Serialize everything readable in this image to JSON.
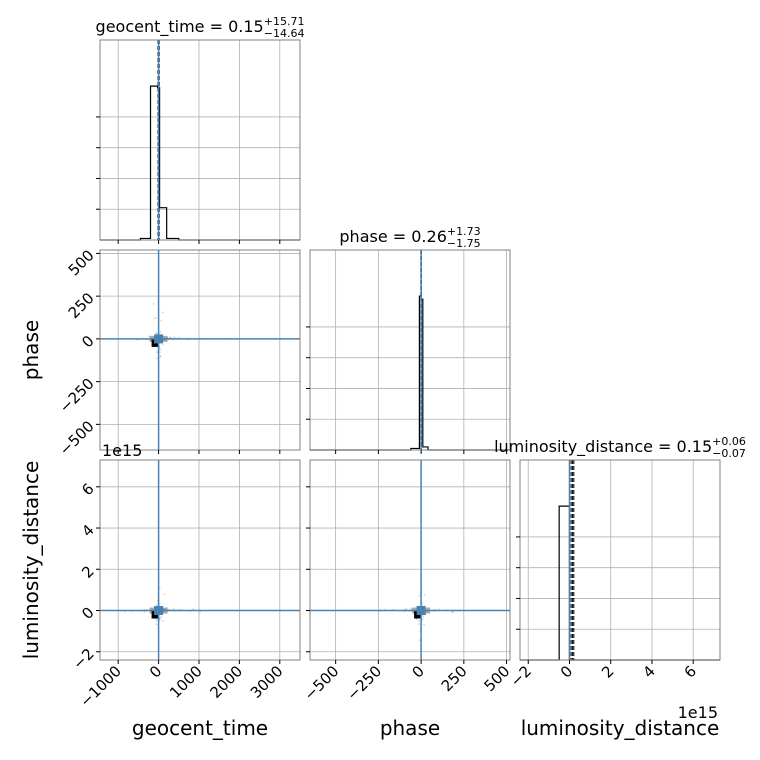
{
  "chart_data": {
    "type": "corner",
    "parameters": [
      "geocent_time",
      "phase",
      "luminosity_distance"
    ],
    "axis_labels": {
      "geocent_time": "geocent_time",
      "phase": "phase",
      "luminosity_distance": "luminosity_distance"
    },
    "ranges": {
      "geocent_time": [
        -1450,
        3500
      ],
      "phase": [
        -650,
        520
      ],
      "luminosity_distance": [
        -2.4,
        7.3
      ]
    },
    "ticks": {
      "geocent_time": [
        -1000,
        0,
        1000,
        2000,
        3000
      ],
      "phase": [
        -500,
        -250,
        0,
        250,
        500
      ],
      "luminosity_distance": [
        -2,
        0,
        2,
        4,
        6
      ]
    },
    "tick_labels": {
      "geocent_time": [
        "−1000",
        "0",
        "1000",
        "2000",
        "3000"
      ],
      "phase": [
        "−500",
        "−250",
        "0",
        "250",
        "500"
      ],
      "luminosity_distance": [
        "−2",
        "0",
        "2",
        "4",
        "6"
      ]
    },
    "offset_text": "1e15",
    "truths": {
      "geocent_time": 0,
      "phase": 0,
      "luminosity_distance": 0
    },
    "truth_color": "#4682b4",
    "quantile_lines": {
      "geocent_time": [
        -14.49,
        0.15,
        15.86
      ],
      "phase": [
        -1.49,
        0.26,
        1.99
      ],
      "luminosity_distance": [
        0.08,
        0.15,
        0.21
      ]
    },
    "titles": {
      "geocent_time": {
        "name": "geocent_time",
        "value": "0.15",
        "plus": "+15.71",
        "minus": "−14.64"
      },
      "phase": {
        "name": "phase",
        "value": "0.26",
        "plus": "+1.73",
        "minus": "−1.75"
      },
      "luminosity_distance": {
        "name": "luminosity_distance",
        "value": "0.15",
        "plus": "+0.06",
        "minus": "−0.07"
      }
    },
    "histograms": {
      "geocent_time": {
        "edges": [
          -450,
          -200,
          -25,
          25,
          200,
          500
        ],
        "counts": [
          0.01,
          1.0,
          0.99,
          0.21,
          0.01
        ]
      },
      "phase": {
        "edges": [
          -60,
          -10,
          0,
          10,
          40
        ],
        "counts": [
          0.01,
          1.0,
          0.98,
          0.02
        ]
      },
      "luminosity_distance": {
        "edges": [
          -0.5,
          -0.05,
          0.0
        ],
        "counts": [
          1.0,
          1.0
        ]
      }
    },
    "hist_ymax": 1.3,
    "grid": true
  }
}
